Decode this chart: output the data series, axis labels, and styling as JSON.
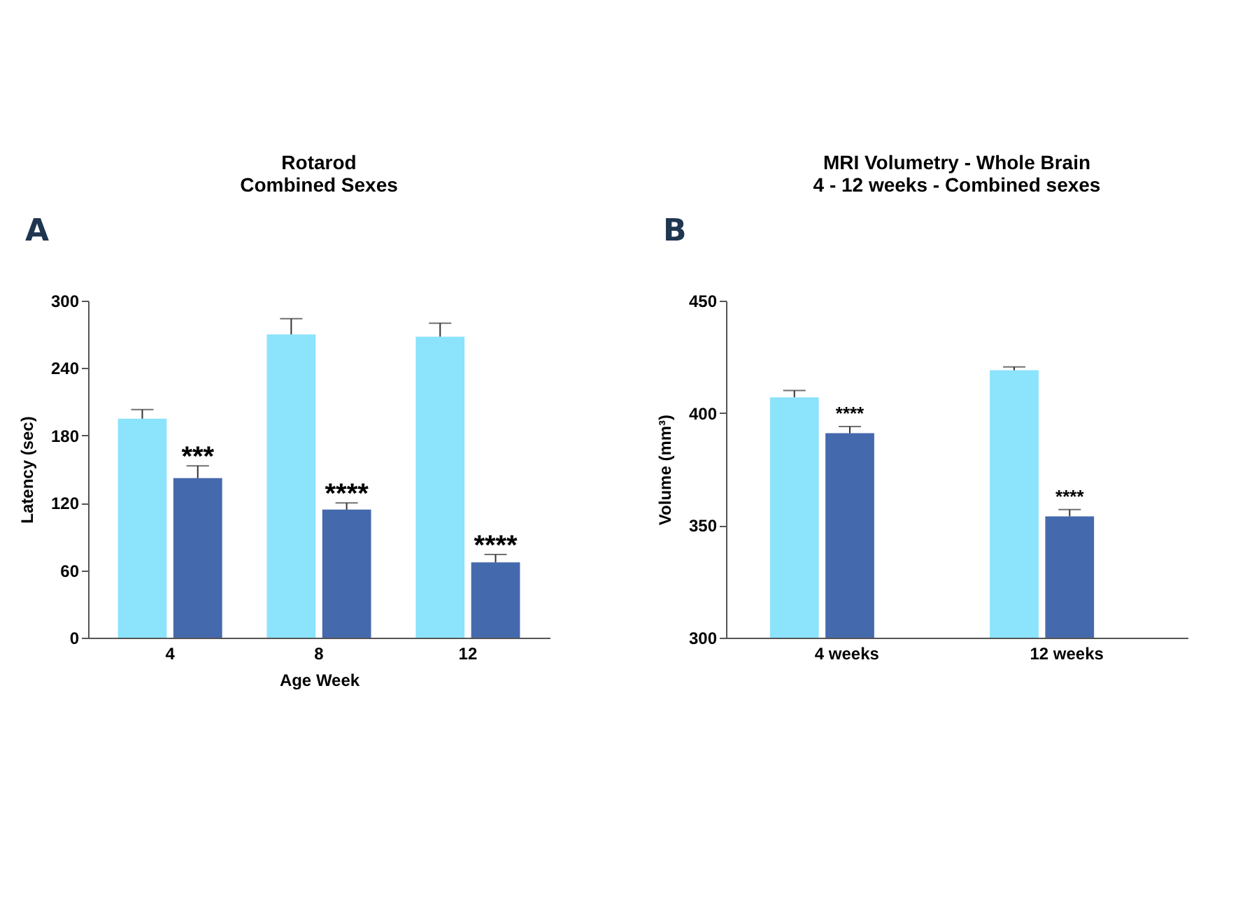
{
  "chart_data": [
    {
      "type": "bar",
      "title": "Rotarod\nCombined Sexes",
      "xlabel": "Age Week",
      "ylabel": "Latency (sec)",
      "categories": [
        "4",
        "8",
        "12"
      ],
      "ylim": [
        0,
        300
      ],
      "yticks": [
        0,
        60,
        120,
        180,
        240,
        300
      ],
      "grid": false,
      "legend": false,
      "series": [
        {
          "color": "#8be3fc",
          "values": [
            195,
            270,
            268
          ],
          "errors": [
            8,
            14,
            12
          ]
        },
        {
          "color": "#4569ad",
          "values": [
            142,
            114,
            67
          ],
          "errors": [
            11,
            6,
            7
          ]
        }
      ],
      "annotations": [
        "A",
        {
          "text": "***",
          "x": "4",
          "y": 153
        },
        {
          "text": "****",
          "x": "8",
          "y": 120
        },
        {
          "text": "****",
          "x": "12",
          "y": 74
        }
      ]
    },
    {
      "type": "bar",
      "title": "MRI Volumetry - Whole Brain\n4 - 12 weeks - Combined sexes",
      "ylabel": "Volume (mm³)",
      "categories": [
        "4 weeks",
        "12 weeks"
      ],
      "ylim": [
        300,
        450
      ],
      "yticks": [
        300,
        350,
        400,
        450
      ],
      "grid": false,
      "legend": false,
      "series": [
        {
          "color": "#8be3fc",
          "values": [
            407,
            419
          ],
          "errors": [
            3,
            1.5
          ]
        },
        {
          "color": "#4569ad",
          "values": [
            391,
            354
          ],
          "errors": [
            3,
            3
          ]
        }
      ],
      "annotations": [
        "B",
        {
          "text": "****",
          "x": "4 weeks",
          "y": 394
        },
        {
          "text": "****",
          "x": "12 weeks",
          "y": 357
        }
      ]
    }
  ]
}
